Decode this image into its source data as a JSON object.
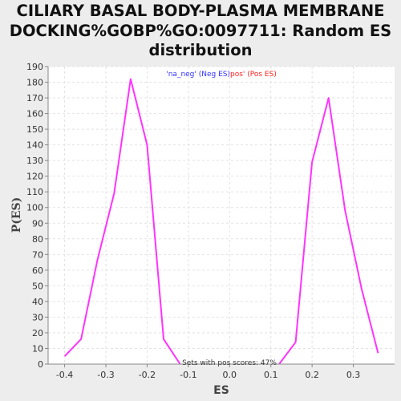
{
  "title_lines": [
    "CILIARY BASAL BODY-PLASMA MEMBRANE",
    "DOCKING%GOBP%GO:0097711: Random ES",
    "distribution"
  ],
  "chart_data": {
    "type": "line",
    "xlabel": "ES",
    "ylabel": "P(ES)",
    "xlim": [
      -0.44,
      0.4
    ],
    "ylim": [
      0,
      190
    ],
    "xticks": [
      -0.4,
      -0.3,
      -0.2,
      -0.1,
      0.0,
      0.1,
      0.2,
      0.3
    ],
    "xtick_labels": [
      "-0.4",
      "-0.3",
      "-0.2",
      "-0.1",
      "0.0",
      "0.1",
      "0.2",
      "0.3"
    ],
    "yticks": [
      0,
      10,
      20,
      30,
      40,
      50,
      60,
      70,
      80,
      90,
      100,
      110,
      120,
      130,
      140,
      150,
      160,
      170,
      180,
      190
    ],
    "grid": true,
    "legend": {
      "placement": "top-center",
      "entries": [
        {
          "label": "'na_neg' (Neg ES)",
          "color": "#3333ff"
        },
        {
          "label": "pos' (Pos ES)",
          "color": "#ff2222"
        }
      ]
    },
    "line_color": "#ff33ff",
    "series": [
      {
        "x": [
          -0.4,
          -0.36,
          -0.32,
          -0.28,
          -0.24,
          -0.2,
          -0.16,
          -0.12
        ],
        "values": [
          5,
          16,
          67,
          109,
          182,
          140,
          16,
          0
        ]
      },
      {
        "x": [
          0.12,
          0.16,
          0.2,
          0.24,
          0.28,
          0.32,
          0.36
        ],
        "values": [
          0,
          14,
          129,
          170,
          98,
          48,
          7
        ]
      }
    ],
    "annotation": "Sets with pos scores: 47%"
  }
}
